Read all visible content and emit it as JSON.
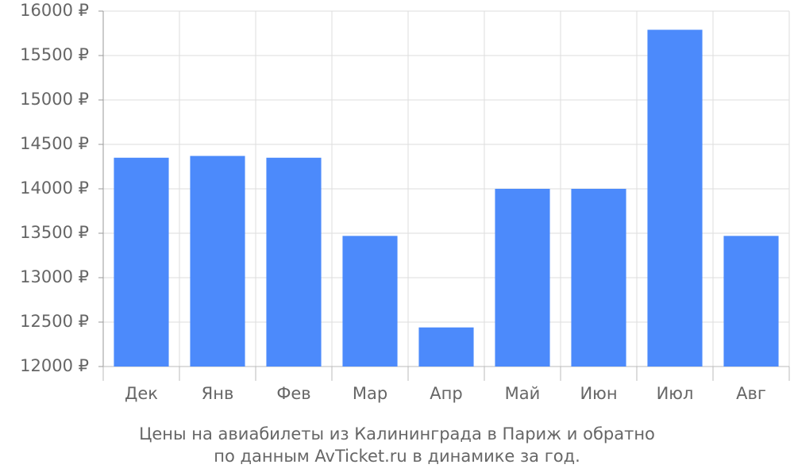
{
  "chart_data": {
    "type": "bar",
    "caption": [
      "Цены на авиабилеты из Калининграда в Париж и обратно",
      "по данным AvTicket.ru в динамике за год."
    ],
    "categories": [
      "Дек",
      "Янв",
      "Фев",
      "Мар",
      "Апр",
      "Май",
      "Июн",
      "Июл",
      "Авг"
    ],
    "values": [
      14350,
      14370,
      14350,
      13470,
      12440,
      14000,
      14000,
      15790,
      13470
    ],
    "color": "#4c8afb",
    "ylim": [
      12000,
      16000
    ],
    "yticks": [
      {
        "value": 12000,
        "label": "12000 ₽"
      },
      {
        "value": 12500,
        "label": "12500 ₽"
      },
      {
        "value": 13000,
        "label": "13000 ₽"
      },
      {
        "value": 13500,
        "label": "13500 ₽"
      },
      {
        "value": 14000,
        "label": "14000 ₽"
      },
      {
        "value": 14500,
        "label": "14500 ₽"
      },
      {
        "value": 15000,
        "label": "15000 ₽"
      },
      {
        "value": 15500,
        "label": "15500 ₽"
      },
      {
        "value": 16000,
        "label": "16000 ₽"
      }
    ],
    "grid": true
  }
}
